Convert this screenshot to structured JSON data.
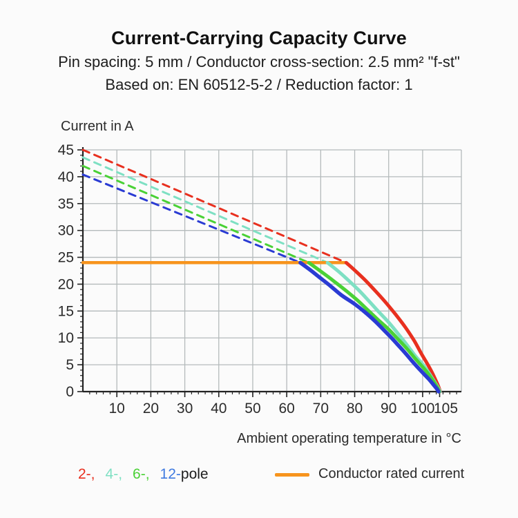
{
  "header": {
    "title": "Current-Carrying Capacity Curve",
    "subtitle1": "Pin spacing: 5 mm / Conductor cross-section: 2.5 mm² \"f-st\"",
    "subtitle2": "Based on: EN 60512-5-2 / Reduction factor: 1"
  },
  "chart_data": {
    "type": "line",
    "title": "Current-Carrying Capacity Curve",
    "ylabel": "Current in A",
    "xlabel": "Ambient operating temperature in °C",
    "xlim": [
      0,
      111.4
    ],
    "ylim": [
      0,
      45
    ],
    "x_ticks": [
      10,
      20,
      30,
      40,
      50,
      60,
      70,
      80,
      90,
      100,
      105
    ],
    "x_tick_offsets": {
      "105": 9
    },
    "x_minor_step": 2,
    "x_minor_max": 110,
    "y_ticks": [
      0,
      5,
      10,
      15,
      20,
      25,
      30,
      35,
      40,
      45
    ],
    "y_minor_step": 1,
    "grid": true,
    "grid_color": "#b4babb",
    "axis_color": "#222222",
    "rated_current_A": 24,
    "series": [
      {
        "name": "2-pole derating (dashed)",
        "style": "dashed",
        "color": "#e8301f",
        "width": 3,
        "points": [
          [
            0,
            45
          ],
          [
            77.5,
            24
          ]
        ]
      },
      {
        "name": "4-pole derating (dashed)",
        "style": "dashed",
        "color": "#7ee0c3",
        "width": 3,
        "points": [
          [
            0,
            43.6
          ],
          [
            72,
            24
          ]
        ]
      },
      {
        "name": "6-pole derating (dashed)",
        "style": "dashed",
        "color": "#4ad136",
        "width": 3,
        "points": [
          [
            0,
            42
          ],
          [
            66.5,
            24
          ]
        ]
      },
      {
        "name": "12-pole derating (dashed)",
        "style": "dashed",
        "color": "#2a3bd3",
        "width": 3,
        "points": [
          [
            0,
            40.4
          ],
          [
            64,
            24
          ]
        ]
      },
      {
        "name": "Conductor rated current",
        "style": "solid",
        "color": "#f7941d",
        "width": 4.5,
        "points": [
          [
            0,
            24
          ],
          [
            77.5,
            24
          ]
        ]
      },
      {
        "name": "2-pole",
        "style": "solid",
        "color": "#e8301f",
        "width": 5,
        "smooth": true,
        "points": [
          [
            77.5,
            24
          ],
          [
            80,
            22.6
          ],
          [
            83,
            20.8
          ],
          [
            86,
            18.8
          ],
          [
            89,
            16.7
          ],
          [
            92,
            14.4
          ],
          [
            95,
            11.9
          ],
          [
            97.5,
            9.5
          ],
          [
            99.5,
            7.2
          ],
          [
            101,
            5.6
          ],
          [
            102.5,
            3.9
          ],
          [
            103.8,
            2.2
          ],
          [
            104.7,
            0.9
          ],
          [
            105.15,
            0
          ]
        ]
      },
      {
        "name": "4-pole",
        "style": "solid",
        "color": "#7ee0c3",
        "width": 5,
        "smooth": true,
        "points": [
          [
            72,
            24
          ],
          [
            75,
            22.5
          ],
          [
            78,
            20.8
          ],
          [
            81,
            19.0
          ],
          [
            84,
            17.0
          ],
          [
            87,
            14.9
          ],
          [
            90,
            12.9
          ],
          [
            93,
            10.6
          ],
          [
            95.5,
            8.6
          ],
          [
            98,
            6.5
          ],
          [
            100,
            5.1
          ],
          [
            101.8,
            3.5
          ],
          [
            103.3,
            2.0
          ],
          [
            104.5,
            0.8
          ],
          [
            105.1,
            0
          ]
        ]
      },
      {
        "name": "6-pole",
        "style": "solid",
        "color": "#4ad136",
        "width": 5,
        "smooth": true,
        "points": [
          [
            66.5,
            24
          ],
          [
            70,
            22.4
          ],
          [
            74,
            20.5
          ],
          [
            78,
            18.5
          ],
          [
            81,
            16.9
          ],
          [
            84,
            15.1
          ],
          [
            87,
            13.3
          ],
          [
            90,
            11.6
          ],
          [
            93,
            9.6
          ],
          [
            95.5,
            7.9
          ],
          [
            98,
            6.0
          ],
          [
            100,
            4.6
          ],
          [
            101.8,
            3.2
          ],
          [
            103.2,
            1.9
          ],
          [
            104.3,
            0.8
          ],
          [
            104.9,
            0
          ]
        ]
      },
      {
        "name": "12-pole",
        "style": "solid",
        "color": "#2a3bd3",
        "width": 5.5,
        "smooth": true,
        "points": [
          [
            64,
            24
          ],
          [
            67,
            22.6
          ],
          [
            70,
            21.1
          ],
          [
            73,
            19.6
          ],
          [
            76,
            18.0
          ],
          [
            80,
            16.3
          ],
          [
            83,
            14.8
          ],
          [
            86,
            13.1
          ],
          [
            89,
            11.2
          ],
          [
            91,
            9.9
          ],
          [
            93,
            8.5
          ],
          [
            95,
            7.1
          ],
          [
            97,
            5.6
          ],
          [
            99,
            4.2
          ],
          [
            100.5,
            3.2
          ],
          [
            102,
            2.2
          ],
          [
            103.3,
            1.2
          ],
          [
            104.2,
            0.5
          ],
          [
            104.7,
            0
          ]
        ]
      }
    ]
  },
  "legend": {
    "poles": [
      {
        "label": "2-,",
        "color": "#e8301f"
      },
      {
        "label": "4-,",
        "color": "#7ee0c3"
      },
      {
        "label": "6-,",
        "color": "#4ad136"
      },
      {
        "label": "12-",
        "color": "#3f7ae0"
      }
    ],
    "suffix": "pole",
    "rated": {
      "label": "Conductor rated current",
      "color": "#f7941d"
    }
  }
}
